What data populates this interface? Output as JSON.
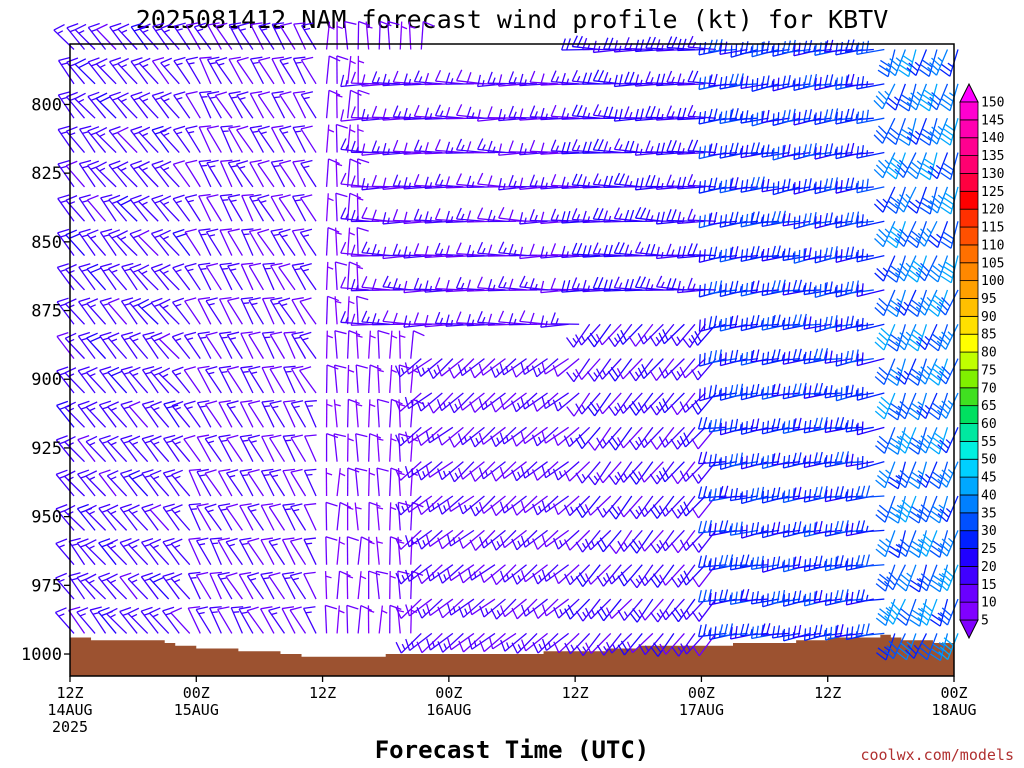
{
  "chart_data": {
    "type": "wind-barb-profile",
    "title": "2025081412 NAM forecast wind profile (kt) for KBTV",
    "xlabel": "Forecast Time (UTC)",
    "ylabel": "",
    "credit": "coolwx.com/models",
    "y_axis": {
      "min": 778,
      "max": 1008,
      "inverted": true,
      "ticks": [
        800,
        825,
        850,
        875,
        900,
        925,
        950,
        975,
        1000
      ]
    },
    "x_axis": {
      "unit": "hours since 12Z 14AUG 2025",
      "min": 0,
      "max": 84,
      "ticks": [
        {
          "hour": 0,
          "line1": "12Z",
          "line2": "14AUG",
          "line3": "2025"
        },
        {
          "hour": 12,
          "line1": "00Z",
          "line2": "15AUG",
          "line3": ""
        },
        {
          "hour": 24,
          "line1": "12Z",
          "line2": "",
          "line3": ""
        },
        {
          "hour": 36,
          "line1": "00Z",
          "line2": "16AUG",
          "line3": ""
        },
        {
          "hour": 48,
          "line1": "12Z",
          "line2": "",
          "line3": ""
        },
        {
          "hour": 60,
          "line1": "00Z",
          "line2": "17AUG",
          "line3": ""
        },
        {
          "hour": 72,
          "line1": "12Z",
          "line2": "",
          "line3": ""
        },
        {
          "hour": 84,
          "line1": "00Z",
          "line2": "18AUG",
          "line3": ""
        }
      ]
    },
    "surface_pressure": [
      [
        0,
        994
      ],
      [
        1,
        994
      ],
      [
        2,
        995
      ],
      [
        3,
        995
      ],
      [
        4,
        995
      ],
      [
        5,
        995
      ],
      [
        6,
        995
      ],
      [
        7,
        995
      ],
      [
        8,
        995
      ],
      [
        9,
        996
      ],
      [
        10,
        997
      ],
      [
        12,
        998
      ],
      [
        14,
        998
      ],
      [
        16,
        999
      ],
      [
        18,
        999
      ],
      [
        20,
        1000
      ],
      [
        22,
        1001
      ],
      [
        24,
        1001
      ],
      [
        27,
        1001
      ],
      [
        30,
        1000
      ],
      [
        33,
        1000
      ],
      [
        36,
        1000
      ],
      [
        39,
        1000
      ],
      [
        42,
        1000
      ],
      [
        45,
        999
      ],
      [
        48,
        999
      ],
      [
        51,
        998
      ],
      [
        54,
        997
      ],
      [
        57,
        997
      ],
      [
        60,
        997
      ],
      [
        63,
        996
      ],
      [
        66,
        996
      ],
      [
        69,
        995
      ],
      [
        72,
        994
      ],
      [
        75,
        994
      ],
      [
        77,
        993
      ],
      [
        78,
        994
      ],
      [
        79,
        995
      ],
      [
        81,
        995
      ],
      [
        82,
        996
      ],
      [
        84,
        996
      ]
    ],
    "colorbar": {
      "unit": "kt",
      "labels": [
        "5",
        "10",
        "15",
        "20",
        "25",
        "30",
        "35",
        "40",
        "45",
        "50",
        "55",
        "60",
        "65",
        "70",
        "75",
        "80",
        "85",
        "90",
        "95",
        "100",
        "105",
        "110",
        "115",
        "120",
        "125",
        "130",
        "135",
        "140",
        "145",
        "150"
      ],
      "colors": [
        "#8000ff",
        "#6a00ff",
        "#4000ff",
        "#2000ff",
        "#0020ff",
        "#0050ff",
        "#0080ff",
        "#00a8ff",
        "#00d0ff",
        "#00f0e0",
        "#00e8a0",
        "#00e060",
        "#40e020",
        "#80f000",
        "#c0ff00",
        "#ffff00",
        "#ffe000",
        "#ffc000",
        "#ffa000",
        "#ff8800",
        "#ff7000",
        "#ff5000",
        "#ff3000",
        "#ff0000",
        "#ff0040",
        "#ff0070",
        "#ff0090",
        "#ff00b0",
        "#ff00d0",
        "#ff00ff"
      ]
    },
    "wind_regimes": [
      {
        "hours": [
          0,
          12
        ],
        "pressure": [
          780,
          1000
        ],
        "direction_deg": 320,
        "speed_kt": [
          12,
          18
        ]
      },
      {
        "hours": [
          12,
          24
        ],
        "pressure": [
          780,
          1000
        ],
        "direction_deg": 330,
        "speed_kt": [
          10,
          15
        ]
      },
      {
        "hours": [
          24,
          33
        ],
        "pressure": [
          780,
          1000
        ],
        "direction_deg": 0,
        "speed_kt": [
          5,
          10
        ]
      },
      {
        "hours": [
          28,
          48
        ],
        "pressure": [
          790,
          880
        ],
        "direction_deg": 270,
        "speed_kt": [
          10,
          15
        ]
      },
      {
        "hours": [
          33,
          48
        ],
        "pressure": [
          885,
          1000
        ],
        "direction_deg": 230,
        "speed_kt": [
          10,
          15
        ]
      },
      {
        "hours": [
          49,
          62
        ],
        "pressure": [
          780,
          870
        ],
        "direction_deg": 270,
        "speed_kt": [
          15,
          20
        ]
      },
      {
        "hours": [
          49,
          62
        ],
        "pressure": [
          870,
          1000
        ],
        "direction_deg": 220,
        "speed_kt": [
          10,
          20
        ]
      },
      {
        "hours": [
          62,
          77
        ],
        "pressure": [
          780,
          1000
        ],
        "direction_deg": 260,
        "speed_kt": [
          20,
          30
        ]
      },
      {
        "hours": [
          78,
          84
        ],
        "pressure": [
          780,
          1000
        ],
        "direction_deg": 200,
        "speed_kt": [
          25,
          40
        ]
      }
    ]
  }
}
